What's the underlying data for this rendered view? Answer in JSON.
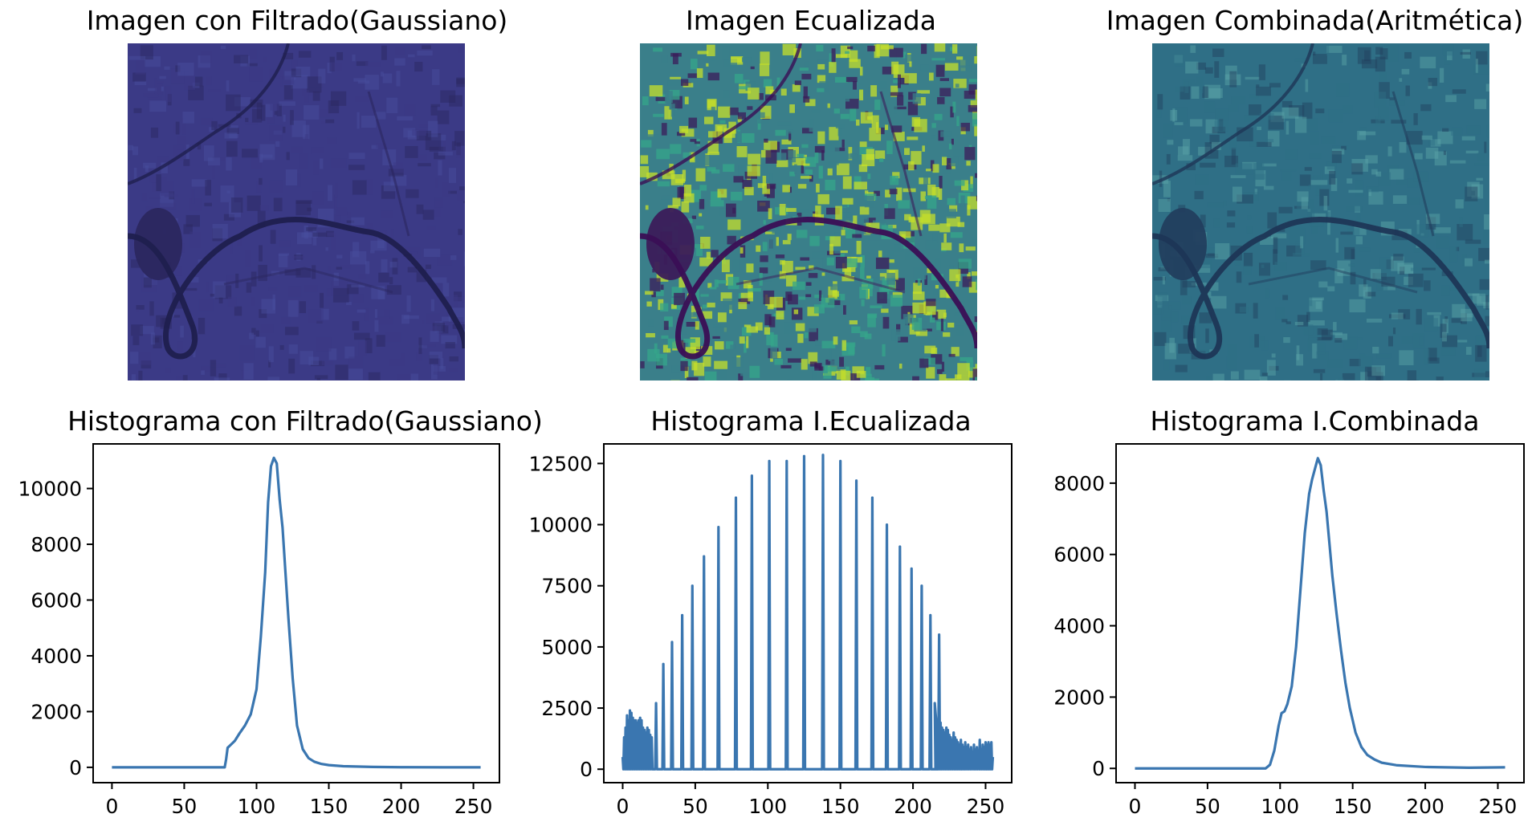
{
  "images": [
    {
      "title": "Imagen con Filtrado(Gaussiano)",
      "colors": {
        "base": "#3b3a86",
        "dark": "#2b275f",
        "light": "#4a4fa0",
        "river": "#1f1f4e"
      }
    },
    {
      "title": "Imagen Ecualizada",
      "colors": {
        "base": "#3a7f8a",
        "dark": "#3b1c5a",
        "light": "#c6df2a",
        "mid": "#36a58a",
        "river": "#3a0f55"
      }
    },
    {
      "title": "Imagen Combinada(Aritmética)",
      "colors": {
        "base": "#2f6f86",
        "dark": "#223e5e",
        "light": "#5ea7a8",
        "river": "#1e3656"
      }
    }
  ],
  "line_color": "#3a76b0",
  "chart_data": [
    {
      "type": "line",
      "title": "Histograma con Filtrado(Gaussiano)",
      "xlim": [
        -13,
        268
      ],
      "ylim": [
        -550,
        11600
      ],
      "xticks": [
        0,
        50,
        100,
        150,
        200,
        250
      ],
      "yticks": [
        0,
        2000,
        4000,
        6000,
        8000,
        10000
      ],
      "series": [
        {
          "x": [
            0,
            78,
            79,
            80,
            82,
            85,
            88,
            92,
            96,
            100,
            103,
            106,
            108,
            110,
            112,
            114,
            116,
            118,
            120,
            122,
            125,
            128,
            132,
            136,
            140,
            145,
            150,
            160,
            180,
            200,
            230,
            255
          ],
          "values": [
            0,
            0,
            300,
            700,
            800,
            950,
            1200,
            1500,
            1900,
            2800,
            4700,
            7000,
            9500,
            10800,
            11100,
            10900,
            9600,
            8600,
            7000,
            5400,
            3200,
            1500,
            650,
            330,
            200,
            120,
            80,
            40,
            15,
            5,
            0,
            0
          ]
        }
      ]
    },
    {
      "type": "line",
      "title": "Histograma I.Ecualizada",
      "xlim": [
        -13,
        268
      ],
      "ylim": [
        -550,
        13300
      ],
      "xticks": [
        0,
        50,
        100,
        150,
        200,
        250
      ],
      "yticks": [
        0,
        2500,
        5000,
        7500,
        10000,
        12500
      ],
      "dense_start": 0,
      "dense_end": 20,
      "dense_values": [
        500,
        1300,
        1700,
        2200,
        2000,
        2400,
        2300,
        2100,
        2000,
        2000,
        1900,
        2000,
        2100,
        2000,
        1700,
        1600,
        1500,
        1700,
        1600,
        1400,
        1300
      ],
      "tail_start": 215,
      "tail_end": 255,
      "tail_values": [
        2700,
        1500,
        2000,
        1800,
        1900,
        1700,
        1600,
        1500,
        1700,
        1600,
        1400,
        1300,
        1200,
        1500,
        1300,
        1200,
        1100,
        1000,
        1200,
        1000,
        900,
        1100,
        900,
        1000,
        800,
        900,
        700,
        1000,
        800,
        900,
        700,
        1200,
        800,
        1000,
        900,
        1100,
        1000,
        1100,
        1000,
        1100,
        500
      ],
      "peaks": [
        {
          "x": 23,
          "y": 2700
        },
        {
          "x": 28,
          "y": 4300
        },
        {
          "x": 34,
          "y": 5200
        },
        {
          "x": 41,
          "y": 6300
        },
        {
          "x": 48,
          "y": 7500
        },
        {
          "x": 56,
          "y": 8700
        },
        {
          "x": 66,
          "y": 9900
        },
        {
          "x": 78,
          "y": 11100
        },
        {
          "x": 89,
          "y": 12000
        },
        {
          "x": 101,
          "y": 12600
        },
        {
          "x": 113,
          "y": 12600
        },
        {
          "x": 125,
          "y": 12800
        },
        {
          "x": 138,
          "y": 12850
        },
        {
          "x": 150,
          "y": 12600
        },
        {
          "x": 161,
          "y": 11800
        },
        {
          "x": 172,
          "y": 11100
        },
        {
          "x": 182,
          "y": 10000
        },
        {
          "x": 191,
          "y": 9100
        },
        {
          "x": 199,
          "y": 8200
        },
        {
          "x": 206,
          "y": 7500
        },
        {
          "x": 212,
          "y": 6300
        },
        {
          "x": 218,
          "y": 5500
        }
      ]
    },
    {
      "type": "line",
      "title": "Histograma I.Combinada",
      "xlim": [
        -13,
        268
      ],
      "ylim": [
        -400,
        9100
      ],
      "xticks": [
        0,
        50,
        100,
        150,
        200,
        250
      ],
      "yticks": [
        0,
        2000,
        4000,
        6000,
        8000
      ],
      "series": [
        {
          "x": [
            0,
            90,
            93,
            96,
            99,
            101,
            103,
            105,
            108,
            111,
            114,
            117,
            120,
            122,
            124,
            126,
            128,
            130,
            132,
            134,
            136,
            139,
            142,
            145,
            148,
            152,
            156,
            160,
            165,
            170,
            180,
            200,
            230,
            255
          ],
          "values": [
            0,
            0,
            100,
            500,
            1200,
            1550,
            1600,
            1800,
            2300,
            3400,
            5000,
            6600,
            7700,
            8100,
            8400,
            8700,
            8500,
            7800,
            7200,
            6300,
            5400,
            4300,
            3300,
            2400,
            1700,
            1000,
            600,
            380,
            250,
            160,
            90,
            40,
            20,
            30
          ]
        }
      ]
    }
  ]
}
